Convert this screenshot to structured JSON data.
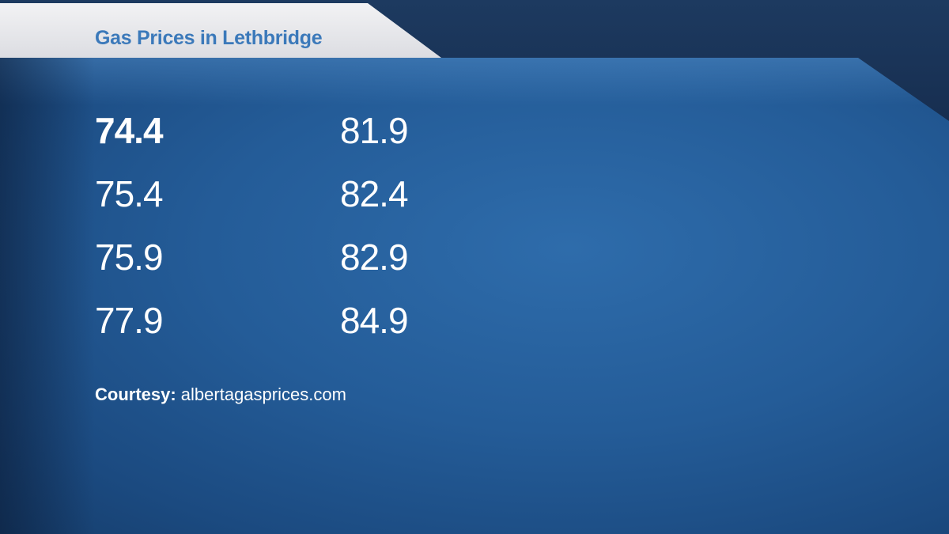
{
  "title": "Gas Prices in Lethbridge",
  "prices": {
    "column1": [
      "74.4",
      "75.4",
      "75.9",
      "77.9"
    ],
    "column2": [
      "81.9",
      "82.4",
      "82.9",
      "84.9"
    ]
  },
  "courtesy": {
    "label": "Courtesy:",
    "source": " albertagasprices.com"
  },
  "colors": {
    "title": "#3b79ba",
    "panel": "#245c98",
    "background": "#14294a"
  }
}
